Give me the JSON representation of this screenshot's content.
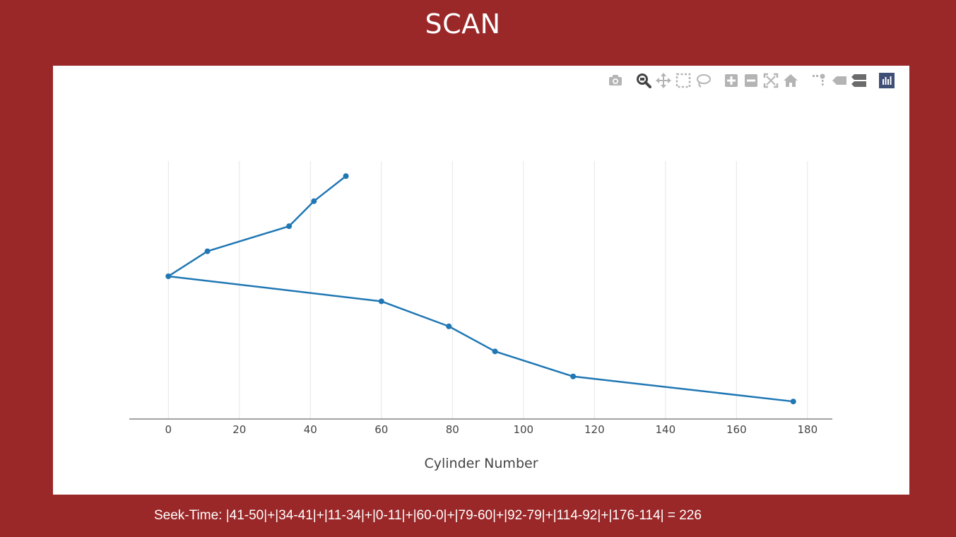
{
  "page_title": "SCAN",
  "seek_time_text": "Seek-Time: |41-50|+|34-41|+|11-34|+|0-11|+|60-0|+|79-60|+|92-79|+|114-92|+|176-114| = 226",
  "colors": {
    "background": "#9b2829",
    "panel": "#ffffff",
    "line": "#1f77b4",
    "grid": "#e5e5e5",
    "modebar_icon": "#b4b4b4",
    "modebar_active": "#444444",
    "plotly_logo": "#3f4f75"
  },
  "modebar": [
    {
      "name": "camera-icon",
      "title": "Download plot as a png",
      "active": false
    },
    {
      "name": "zoom-icon",
      "title": "Zoom",
      "active": true
    },
    {
      "name": "pan-icon",
      "title": "Pan",
      "active": false
    },
    {
      "name": "box-select-icon",
      "title": "Box Select",
      "active": false
    },
    {
      "name": "lasso-select-icon",
      "title": "Lasso Select",
      "active": false
    },
    {
      "name": "zoom-in-icon",
      "title": "Zoom in",
      "active": false
    },
    {
      "name": "zoom-out-icon",
      "title": "Zoom out",
      "active": false
    },
    {
      "name": "autoscale-icon",
      "title": "Autoscale",
      "active": false
    },
    {
      "name": "reset-axes-icon",
      "title": "Reset axes",
      "active": false
    },
    {
      "name": "spike-lines-icon",
      "title": "Toggle Spike Lines",
      "active": false
    },
    {
      "name": "hover-closest-icon",
      "title": "Show closest data on hover",
      "active": false
    },
    {
      "name": "hover-compare-icon",
      "title": "Compare data on hover",
      "active": false
    },
    {
      "name": "plotly-logo-icon",
      "title": "Produced with Plotly",
      "active": false
    }
  ],
  "chart_data": {
    "type": "line",
    "title": "",
    "xlabel": "Cylinder Number",
    "ylabel": "",
    "x_ticks": [
      0,
      20,
      40,
      60,
      80,
      100,
      120,
      140,
      160,
      180
    ],
    "xlim": [
      -11,
      187
    ],
    "ylim": [
      -0.7,
      9.6
    ],
    "grid": "vertical",
    "y_axis_visible": false,
    "series": [
      {
        "x": [
          50,
          41,
          34,
          11,
          0,
          60,
          79,
          92,
          114,
          176
        ],
        "y": [
          9,
          8,
          7,
          6,
          5,
          4,
          3,
          2,
          1,
          0
        ]
      }
    ]
  }
}
